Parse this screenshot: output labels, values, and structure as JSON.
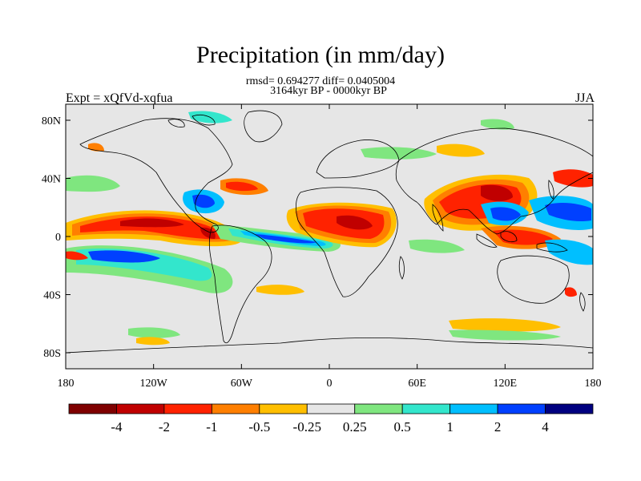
{
  "title": "Precipitation (in mm/day)",
  "stats_line": "rmsd= 0.694277 diff= 0.0405004",
  "period_line": "3164kyr BP - 0000kyr BP",
  "left_label": "Expt = xQfVd-xqfua",
  "right_label": "JJA",
  "lat_ticks": [
    {
      "value": 80,
      "label": "80N"
    },
    {
      "value": 40,
      "label": "40N"
    },
    {
      "value": 0,
      "label": "0"
    },
    {
      "value": -40,
      "label": "40S"
    },
    {
      "value": -80,
      "label": "80S"
    }
  ],
  "lon_ticks": [
    {
      "value": -180,
      "label": "180"
    },
    {
      "value": -120,
      "label": "120W"
    },
    {
      "value": -60,
      "label": "60W"
    },
    {
      "value": 0,
      "label": "0"
    },
    {
      "value": 60,
      "label": "60E"
    },
    {
      "value": 120,
      "label": "120E"
    },
    {
      "value": 180,
      "label": "180"
    }
  ],
  "colorbar": {
    "colors": [
      "#7f0000",
      "#c00000",
      "#ff2200",
      "#ff7f00",
      "#ffbf00",
      "#e6e6e6",
      "#7fe67f",
      "#33e6cc",
      "#00bfff",
      "#0040ff",
      "#000080"
    ],
    "labels": [
      "-4",
      "-2",
      "-1",
      "-0.5",
      "-0.25",
      "0.25",
      "0.5",
      "1",
      "2",
      "4"
    ]
  },
  "colors": {
    "background": "#e6e6e6",
    "coast": "#000000"
  }
}
